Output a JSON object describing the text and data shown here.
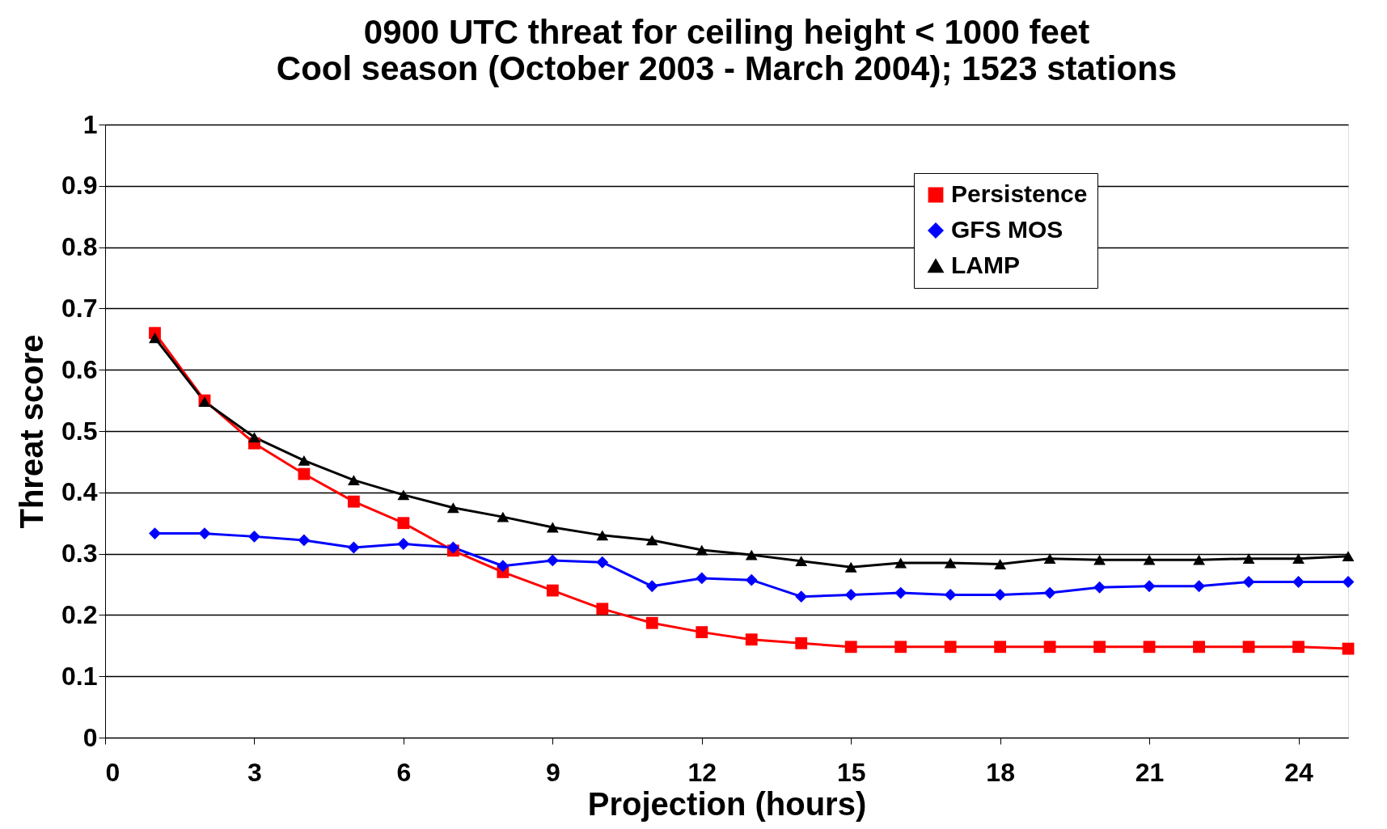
{
  "chart_data": {
    "type": "line",
    "title": "0900 UTC threat for ceiling height < 1000 feet",
    "subtitle": "Cool season (October 2003 - March 2004); 1523 stations",
    "xlabel": "Projection (hours)",
    "ylabel": "Threat score",
    "x": [
      1,
      2,
      3,
      4,
      5,
      6,
      7,
      8,
      9,
      10,
      11,
      12,
      13,
      14,
      15,
      16,
      17,
      18,
      19,
      20,
      21,
      22,
      23,
      24,
      25
    ],
    "series": [
      {
        "name": "Persistence",
        "color": "#ff0000",
        "marker": "square",
        "values": [
          0.66,
          0.55,
          0.48,
          0.43,
          0.385,
          0.35,
          0.305,
          0.27,
          0.24,
          0.21,
          0.187,
          0.172,
          0.16,
          0.154,
          0.148,
          0.148,
          0.148,
          0.148,
          0.148,
          0.148,
          0.148,
          0.148,
          0.148,
          0.148,
          0.145
        ]
      },
      {
        "name": "GFS MOS",
        "color": "#0000ff",
        "marker": "diamond",
        "values": [
          0.333,
          0.333,
          0.328,
          0.322,
          0.31,
          0.316,
          0.31,
          0.28,
          0.289,
          0.286,
          0.247,
          0.26,
          0.257,
          0.23,
          0.233,
          0.236,
          0.233,
          0.233,
          0.236,
          0.245,
          0.247,
          0.247,
          0.254,
          0.254,
          0.254
        ]
      },
      {
        "name": "LAMP",
        "color": "#000000",
        "marker": "triangle",
        "values": [
          0.652,
          0.548,
          0.49,
          0.452,
          0.42,
          0.396,
          0.375,
          0.36,
          0.343,
          0.33,
          0.322,
          0.306,
          0.298,
          0.288,
          0.278,
          0.285,
          0.285,
          0.283,
          0.292,
          0.29,
          0.29,
          0.29,
          0.292,
          0.292,
          0.296
        ]
      }
    ],
    "xlim": [
      0,
      25
    ],
    "xticks": [
      0,
      3,
      6,
      9,
      12,
      15,
      18,
      21,
      24
    ],
    "ylim": [
      0,
      1
    ],
    "yticks": [
      0,
      0.1,
      0.2,
      0.3,
      0.4,
      0.5,
      0.6,
      0.7,
      0.8,
      0.9,
      1
    ],
    "grid": "y",
    "legend": "top right",
    "line_style": "solid"
  }
}
